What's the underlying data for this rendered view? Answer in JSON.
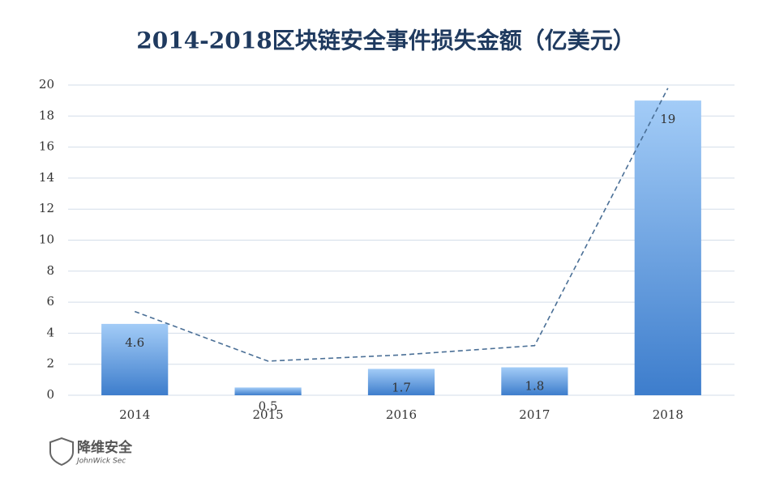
{
  "chart_data": {
    "type": "bar",
    "title": "2014-2018区块链安全事件损失金额（亿美元）",
    "categories": [
      "2014",
      "2015",
      "2016",
      "2017",
      "2018"
    ],
    "values": [
      4.6,
      0.5,
      1.7,
      1.8,
      19
    ],
    "trendline": [
      5.4,
      2.2,
      2.6,
      3.2,
      19.8
    ],
    "color": "#5b9be6",
    "ylim": [
      0,
      20
    ],
    "yticks": [
      0,
      2,
      4,
      6,
      8,
      10,
      12,
      14,
      16,
      18,
      20
    ],
    "grid": true,
    "annotations": [
      "降维安全",
      "JohnWick Sec"
    ]
  }
}
